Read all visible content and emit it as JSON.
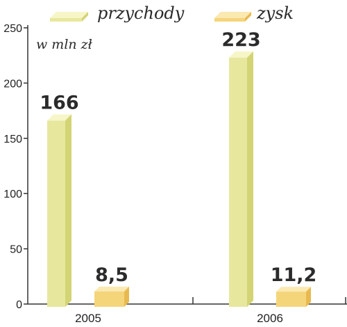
{
  "chart_data": {
    "type": "bar",
    "categories": [
      "2005",
      "2006"
    ],
    "series": [
      {
        "name": "przychody",
        "values": [
          166,
          223
        ],
        "labels": [
          "166",
          "223"
        ]
      },
      {
        "name": "zysk",
        "values": [
          8.5,
          11.2
        ],
        "labels": [
          "8,5",
          "11,2"
        ]
      }
    ],
    "unit": "w mln zł",
    "ylim": [
      0,
      250
    ],
    "yticks": [
      "0",
      "50",
      "100",
      "150",
      "200",
      "250"
    ],
    "grid": false,
    "legend_position": "top"
  },
  "colors": {
    "przychody_front": "#e7e89e",
    "przychody_top": "#f6f6c9",
    "przychody_side": "#d3d474",
    "zysk_front": "#f5d57a",
    "zysk_top": "#fbe9b2",
    "zysk_side": "#e8b94f",
    "axis": "#333333"
  }
}
